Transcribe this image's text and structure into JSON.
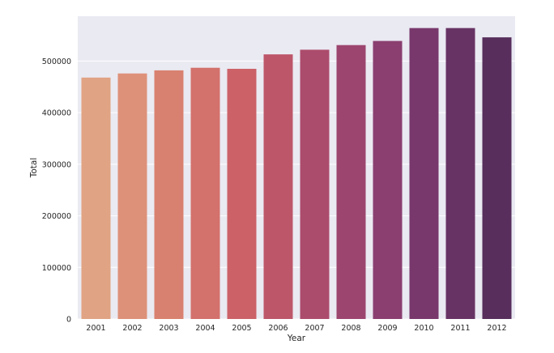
{
  "chart_data": {
    "type": "bar",
    "title": "",
    "xlabel": "Year",
    "ylabel": "Total",
    "categories": [
      "2001",
      "2002",
      "2003",
      "2004",
      "2005",
      "2006",
      "2007",
      "2008",
      "2009",
      "2010",
      "2011",
      "2012"
    ],
    "values": [
      468000,
      476000,
      482000,
      487000,
      485000,
      513000,
      522000,
      531000,
      539000,
      564000,
      564000,
      546000
    ],
    "ylim": [
      0,
      587000
    ],
    "yticks": [
      0,
      100000,
      200000,
      300000,
      400000,
      500000
    ],
    "ytick_labels": [
      "0",
      "100000",
      "200000",
      "300000",
      "400000",
      "500000"
    ],
    "grid": "horizontal",
    "legend": "none",
    "colors": [
      "#e0a383",
      "#dd9179",
      "#d98170",
      "#d3716c",
      "#cc6168",
      "#bd5669",
      "#ac4c6c",
      "#9c456f",
      "#8a3f70",
      "#78386c",
      "#673364",
      "#572e5c"
    ],
    "background": "#eaeaf2"
  }
}
